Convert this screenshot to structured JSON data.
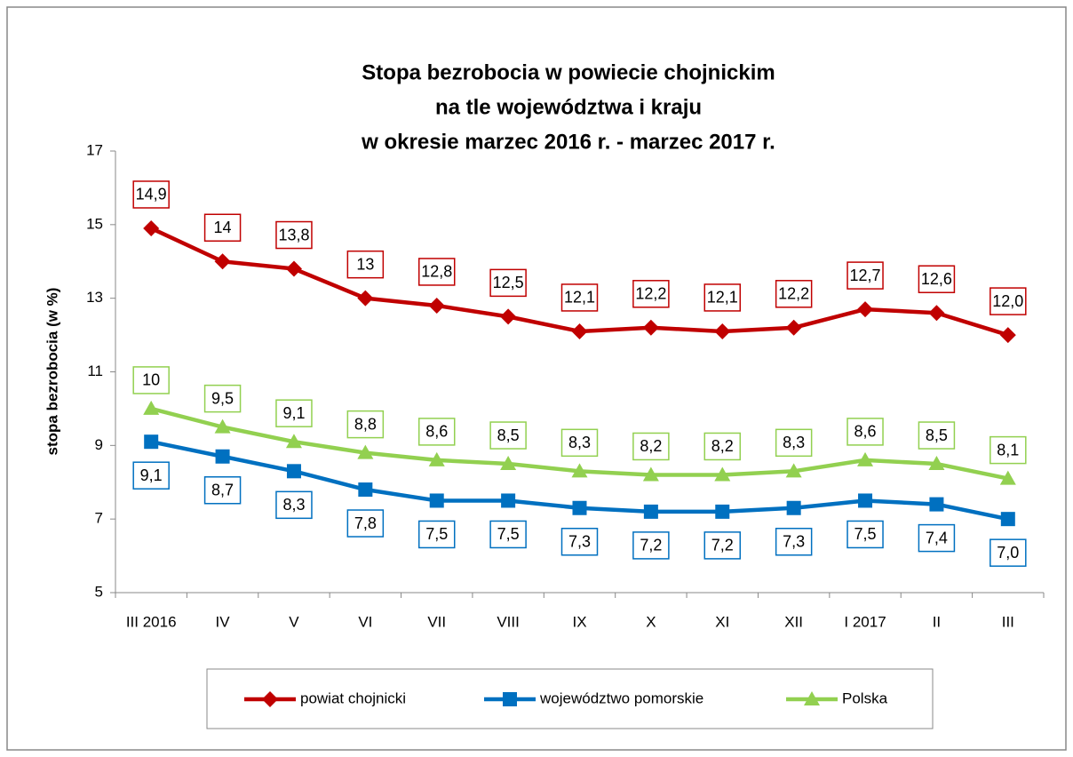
{
  "chart_data": {
    "type": "line",
    "title": [
      "Stopa bezrobocia w powiecie chojnickim",
      "na tle województwa i kraju",
      "w okresie marzec 2016 r. - marzec 2017 r."
    ],
    "y_label": "stopa bezrobocia (w %)",
    "categories": [
      "III 2016",
      "IV",
      "V",
      "VI",
      "VII",
      "VIII",
      "IX",
      "X",
      "XI",
      "XII",
      "I 2017",
      "II",
      "III"
    ],
    "series": [
      {
        "name": "powiat chojnicki",
        "color": "#c00000",
        "marker": "diamond",
        "values": [
          14.9,
          14,
          13.8,
          13,
          12.8,
          12.5,
          12.1,
          12.2,
          12.1,
          12.2,
          12.7,
          12.6,
          12.0
        ],
        "value_labels": [
          "14,9",
          "14",
          "13,8",
          "13",
          "12,8",
          "12,5",
          "12,1",
          "12,2",
          "12,1",
          "12,2",
          "12,7",
          "12,6",
          "12,0"
        ]
      },
      {
        "name": "województwo pomorskie",
        "color": "#0070c0",
        "marker": "square",
        "values": [
          9.1,
          8.7,
          8.3,
          7.8,
          7.5,
          7.5,
          7.3,
          7.2,
          7.2,
          7.3,
          7.5,
          7.4,
          7.0
        ],
        "value_labels": [
          "9,1",
          "8,7",
          "8,3",
          "7,8",
          "7,5",
          "7,5",
          "7,3",
          "7,2",
          "7,2",
          "7,3",
          "7,5",
          "7,4",
          "7,0"
        ]
      },
      {
        "name": "Polska",
        "color": "#92d050",
        "marker": "triangle",
        "values": [
          10,
          9.5,
          9.1,
          8.8,
          8.6,
          8.5,
          8.3,
          8.2,
          8.2,
          8.3,
          8.6,
          8.5,
          8.1
        ],
        "value_labels": [
          "10",
          "9,5",
          "9,1",
          "8,8",
          "8,6",
          "8,5",
          "8,3",
          "8,2",
          "8,2",
          "8,3",
          "8,6",
          "8,5",
          "8,1"
        ]
      }
    ],
    "ylim": [
      5,
      17
    ],
    "yticks": [
      5,
      7,
      9,
      11,
      13,
      15,
      17
    ],
    "grid": false,
    "legend": "bottom"
  }
}
